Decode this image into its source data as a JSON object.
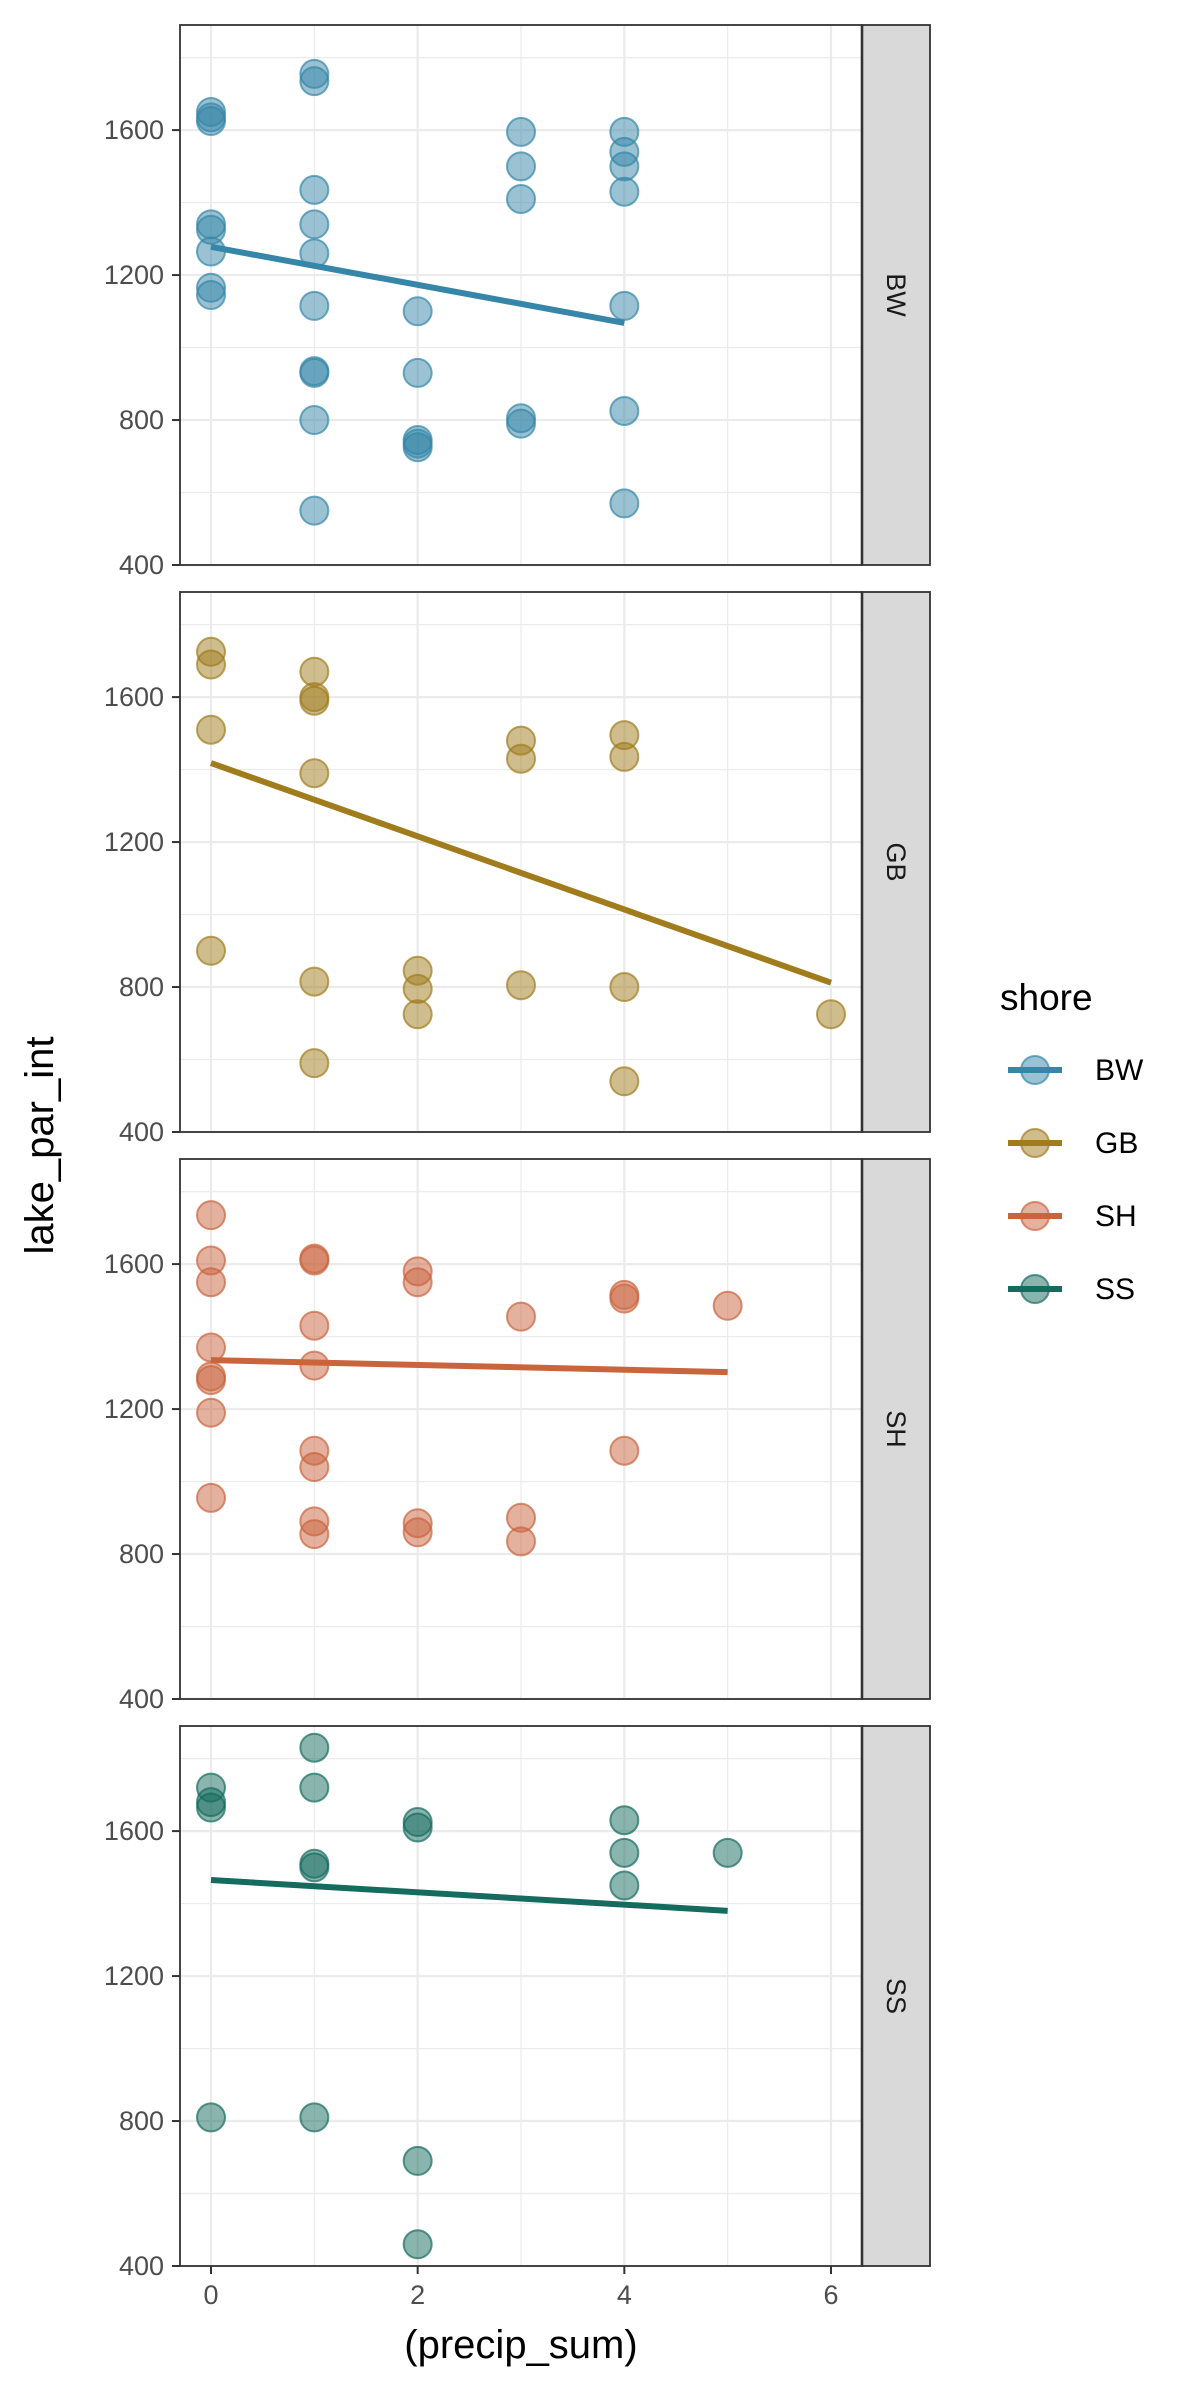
{
  "chart_data": {
    "type": "scatter",
    "facet": "rows",
    "xlabel": "(precip_sum)",
    "ylabel": "lake_par_int",
    "xlim": [
      -0.3,
      6.3
    ],
    "ylim": [
      400,
      1890
    ],
    "x_ticks": [
      0,
      2,
      4,
      6
    ],
    "y_ticks": [
      400,
      800,
      1200,
      1600
    ],
    "grid": true,
    "legend": {
      "title": "shore",
      "position": "right"
    },
    "series": [
      {
        "name": "BW",
        "strip_label": "BW",
        "color": "#3586a8",
        "trend": [
          [
            0,
            1278
          ],
          [
            4,
            1068
          ]
        ],
        "points": [
          [
            0,
            1650
          ],
          [
            0,
            1635
          ],
          [
            0,
            1625
          ],
          [
            0,
            1340
          ],
          [
            0,
            1325
          ],
          [
            0,
            1265
          ],
          [
            0,
            1165
          ],
          [
            0,
            1145
          ],
          [
            1,
            1755
          ],
          [
            1,
            1735
          ],
          [
            1,
            1435
          ],
          [
            1,
            1340
          ],
          [
            1,
            1260
          ],
          [
            1,
            1115
          ],
          [
            1,
            935
          ],
          [
            1,
            930
          ],
          [
            1,
            800
          ],
          [
            1,
            550
          ],
          [
            2,
            1100
          ],
          [
            2,
            930
          ],
          [
            2,
            745
          ],
          [
            2,
            735
          ],
          [
            2,
            725
          ],
          [
            3,
            1595
          ],
          [
            3,
            1500
          ],
          [
            3,
            1410
          ],
          [
            3,
            805
          ],
          [
            3,
            790
          ],
          [
            4,
            1595
          ],
          [
            4,
            1540
          ],
          [
            4,
            1500
          ],
          [
            4,
            1430
          ],
          [
            4,
            1115
          ],
          [
            4,
            825
          ],
          [
            4,
            570
          ]
        ]
      },
      {
        "name": "GB",
        "strip_label": "GB",
        "color": "#a07c1d",
        "trend": [
          [
            0,
            1418
          ],
          [
            6,
            812
          ]
        ],
        "points": [
          [
            0,
            1725
          ],
          [
            0,
            1690
          ],
          [
            0,
            1510
          ],
          [
            0,
            900
          ],
          [
            1,
            1670
          ],
          [
            1,
            1600
          ],
          [
            1,
            1590
          ],
          [
            1,
            1390
          ],
          [
            1,
            815
          ],
          [
            1,
            590
          ],
          [
            2,
            845
          ],
          [
            2,
            795
          ],
          [
            2,
            725
          ],
          [
            3,
            1480
          ],
          [
            3,
            1430
          ],
          [
            3,
            805
          ],
          [
            4,
            1495
          ],
          [
            4,
            1435
          ],
          [
            4,
            800
          ],
          [
            4,
            540
          ],
          [
            6,
            725
          ]
        ]
      },
      {
        "name": "SH",
        "strip_label": "SH",
        "color": "#c9643d",
        "trend": [
          [
            0,
            1335
          ],
          [
            5,
            1302
          ]
        ],
        "points": [
          [
            0,
            1735
          ],
          [
            0,
            1610
          ],
          [
            0,
            1550
          ],
          [
            0,
            1370
          ],
          [
            0,
            1290
          ],
          [
            0,
            1280
          ],
          [
            0,
            1190
          ],
          [
            0,
            955
          ],
          [
            1,
            1615
          ],
          [
            1,
            1610
          ],
          [
            1,
            1430
          ],
          [
            1,
            1320
          ],
          [
            1,
            1085
          ],
          [
            1,
            1040
          ],
          [
            1,
            890
          ],
          [
            1,
            855
          ],
          [
            2,
            1580
          ],
          [
            2,
            1550
          ],
          [
            2,
            885
          ],
          [
            2,
            860
          ],
          [
            3,
            1455
          ],
          [
            3,
            900
          ],
          [
            3,
            835
          ],
          [
            4,
            1515
          ],
          [
            4,
            1505
          ],
          [
            4,
            1085
          ],
          [
            5,
            1485
          ]
        ]
      },
      {
        "name": "SS",
        "strip_label": "SS",
        "color": "#156b5e",
        "trend": [
          [
            0,
            1465
          ],
          [
            5,
            1380
          ]
        ],
        "points": [
          [
            0,
            1720
          ],
          [
            0,
            1680
          ],
          [
            0,
            1665
          ],
          [
            1,
            1830
          ],
          [
            1,
            1720
          ],
          [
            1,
            1510
          ],
          [
            1,
            1500
          ],
          [
            0,
            810
          ],
          [
            1,
            810
          ],
          [
            2,
            1625
          ],
          [
            2,
            1610
          ],
          [
            2,
            690
          ],
          [
            2,
            460
          ],
          [
            4,
            1630
          ],
          [
            4,
            1540
          ],
          [
            4,
            1450
          ],
          [
            5,
            1540
          ]
        ]
      }
    ]
  }
}
